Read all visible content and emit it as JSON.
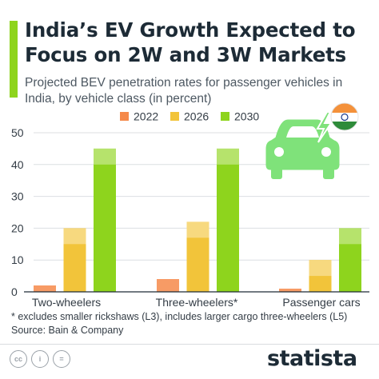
{
  "header": {
    "title": "India’s EV Growth Expected to Focus on 2W and 3W Markets",
    "subtitle": "Projected BEV penetration rates for passenger vehicles in India, by vehicle class (in percent)"
  },
  "chart_data": {
    "type": "bar",
    "title": "India’s EV Growth Expected to Focus on 2W and 3W Markets",
    "subtitle": "Projected BEV penetration rates for passenger vehicles in India, by vehicle class (in percent)",
    "categories": [
      "Two-wheelers",
      "Three-wheelers*",
      "Passenger cars"
    ],
    "series": [
      {
        "name": "2022",
        "color": "#f5894a",
        "values": [
          2,
          4,
          1
        ]
      },
      {
        "name": "2026",
        "color": "#f2c43a",
        "values": [
          20,
          22,
          10
        ]
      },
      {
        "name": "2030",
        "color": "#8ed41d",
        "values": [
          45,
          45,
          20
        ]
      }
    ],
    "ylim": [
      0,
      50
    ],
    "yticks": [
      "0",
      "10",
      "20",
      "30",
      "40",
      "50"
    ],
    "grid": true,
    "legend_position": "top-center",
    "xlabel": "",
    "ylabel": ""
  },
  "footnotes": {
    "note": "* excludes smaller rickshaws (L3), includes larger cargo three-wheelers (L5)",
    "source": "Source: Bain & Company"
  },
  "footer": {
    "brand": "statista",
    "license_icons": [
      "cc-icon",
      "attribution-icon",
      "no-derivatives-icon"
    ]
  },
  "decoration": {
    "icon": "electric-car-icon",
    "flag": "india-flag-icon"
  }
}
